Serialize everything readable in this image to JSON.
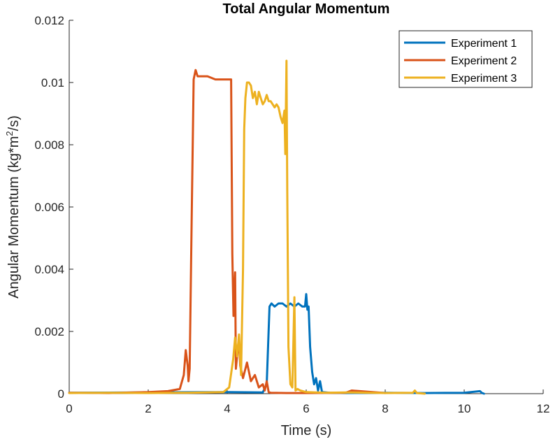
{
  "chart_data": {
    "type": "line",
    "title": "Total Angular Momentum",
    "xlabel": "Time (s)",
    "ylabel_base": "Angular Momentum (kg*m",
    "ylabel_sup": "2",
    "ylabel_tail": "/s)",
    "xlim": [
      0,
      12
    ],
    "ylim": [
      0,
      0.012
    ],
    "xticks": [
      0,
      2,
      4,
      6,
      8,
      10,
      12
    ],
    "xtick_labels": [
      "0",
      "2",
      "4",
      "6",
      "8",
      "10",
      "12"
    ],
    "yticks": [
      0,
      0.002,
      0.004,
      0.006,
      0.008,
      0.01,
      0.012
    ],
    "ytick_labels": [
      "0",
      "0.002",
      "0.004",
      "0.006",
      "0.008",
      "0.01",
      "0.012"
    ],
    "grid": false,
    "legend_position": "top-right",
    "series": [
      {
        "name": "Experiment 1",
        "color": "#0072BD",
        "x": [
          0,
          2,
          4,
          4.9,
          5.0,
          5.07,
          5.12,
          5.2,
          5.3,
          5.4,
          5.5,
          5.6,
          5.7,
          5.8,
          5.9,
          5.97,
          6.0,
          6.03,
          6.06,
          6.1,
          6.15,
          6.2,
          6.25,
          6.3,
          6.35,
          6.4,
          6.6,
          7,
          8,
          9,
          10,
          10.4,
          10.45,
          10.5
        ],
        "y": [
          3e-05,
          4e-05,
          5e-05,
          4e-05,
          0.0003,
          0.0028,
          0.0029,
          0.0028,
          0.0029,
          0.0029,
          0.0028,
          0.0029,
          0.0028,
          0.0029,
          0.0028,
          0.0028,
          0.0032,
          0.0027,
          0.0028,
          0.0015,
          0.0007,
          0.0003,
          0.0005,
          0.0001,
          0.0004,
          5e-05,
          3e-05,
          2e-05,
          3e-05,
          2e-05,
          3e-05,
          8e-05,
          2e-05,
          0.0
        ]
      },
      {
        "name": "Experiment 2",
        "color": "#D95319",
        "x": [
          0,
          1,
          2,
          2.5,
          2.8,
          2.9,
          2.95,
          3.0,
          3.02,
          3.05,
          3.1,
          3.15,
          3.2,
          3.25,
          3.35,
          3.5,
          3.7,
          3.9,
          4.05,
          4.1,
          4.13,
          4.16,
          4.2,
          4.22,
          4.25,
          4.3,
          4.33,
          4.4,
          4.5,
          4.6,
          4.7,
          4.8,
          4.9,
          4.95,
          5.0,
          5.05,
          5.1,
          5.5,
          6.0,
          7.0,
          7.15,
          8
        ],
        "y": [
          3e-05,
          2e-05,
          5e-05,
          8e-05,
          0.00015,
          0.0006,
          0.0014,
          0.0009,
          0.0004,
          0.0008,
          0.0055,
          0.0101,
          0.0104,
          0.0102,
          0.0102,
          0.0102,
          0.0101,
          0.0101,
          0.0101,
          0.0101,
          0.0045,
          0.0025,
          0.0039,
          0.0008,
          0.0012,
          0.0017,
          0.0009,
          0.0005,
          0.001,
          0.0004,
          0.0006,
          0.0002,
          0.0003,
          0.0001,
          0.0004,
          5e-05,
          3e-05,
          2e-05,
          2e-05,
          3e-05,
          0.0001,
          2e-05
        ]
      },
      {
        "name": "Experiment 3",
        "color": "#EDB120",
        "x": [
          0,
          1,
          2,
          3,
          3.5,
          3.9,
          4.05,
          4.15,
          4.2,
          4.25,
          4.3,
          4.35,
          4.4,
          4.43,
          4.46,
          4.5,
          4.55,
          4.6,
          4.65,
          4.7,
          4.75,
          4.8,
          4.85,
          4.9,
          4.95,
          5.0,
          5.05,
          5.1,
          5.15,
          5.2,
          5.25,
          5.3,
          5.35,
          5.4,
          5.45,
          5.47,
          5.5,
          5.52,
          5.55,
          5.6,
          5.65,
          5.7,
          5.73,
          5.78,
          5.85,
          6.0,
          6.5,
          7,
          8,
          8.7,
          8.75,
          8.8,
          9
        ],
        "y": [
          2e-05,
          3e-05,
          2e-05,
          3e-05,
          4e-05,
          5e-05,
          0.0002,
          0.0011,
          0.0018,
          0.0012,
          0.0019,
          0.0006,
          0.004,
          0.0085,
          0.0095,
          0.01,
          0.01,
          0.0099,
          0.0095,
          0.0097,
          0.0093,
          0.0097,
          0.0095,
          0.0093,
          0.0094,
          0.0096,
          0.0094,
          0.0094,
          0.0093,
          0.0092,
          0.0093,
          0.0092,
          0.0089,
          0.0087,
          0.0091,
          0.0077,
          0.0107,
          0.0065,
          0.0015,
          0.0003,
          0.0002,
          0.0031,
          0.0001,
          0.00015,
          0.0001,
          5e-05,
          3e-05,
          4e-05,
          2e-05,
          3e-05,
          0.0001,
          2e-05,
          0.0
        ]
      }
    ]
  }
}
